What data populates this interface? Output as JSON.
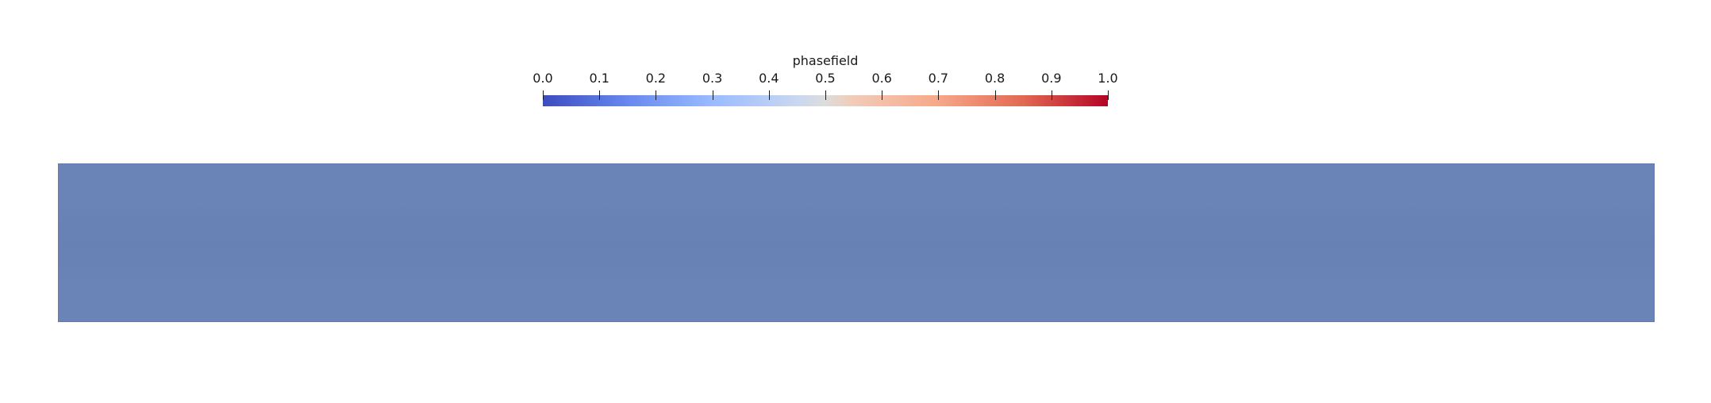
{
  "colorbar": {
    "title": "phasefield",
    "range": [
      0.0,
      1.0
    ],
    "colormap": "coolwarm",
    "ticks": [
      "0.0",
      "0.1",
      "0.2",
      "0.3",
      "0.4",
      "0.5",
      "0.6",
      "0.7",
      "0.8",
      "0.9",
      "1.0"
    ]
  },
  "domain": {
    "fill_color": "#6a84b8",
    "value": 0.18
  }
}
